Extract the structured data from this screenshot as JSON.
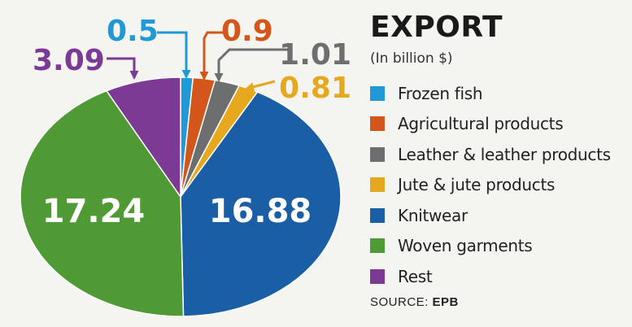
{
  "chart_data": {
    "type": "pie",
    "title": "EXPORT",
    "subtitle": "(In billion $)",
    "slices": [
      {
        "name": "Frozen fish",
        "value": 0.5,
        "color": "#1f9ad6",
        "label": "0.5",
        "label_style": "callout"
      },
      {
        "name": "Agricultural products",
        "value": 0.9,
        "color": "#d3571a",
        "label": "0.9",
        "label_style": "callout"
      },
      {
        "name": "Leather & leather products",
        "value": 1.01,
        "color": "#6d6e70",
        "label": "1.01",
        "label_style": "callout"
      },
      {
        "name": "Jute & jute products",
        "value": 0.81,
        "color": "#e5a81f",
        "label": "0.81",
        "label_style": "callout"
      },
      {
        "name": "Knitwear",
        "value": 16.88,
        "color": "#1a5ea6",
        "label": "16.88",
        "label_style": "inside"
      },
      {
        "name": "Woven garments",
        "value": 17.24,
        "color": "#4f9a34",
        "label": "17.24",
        "label_style": "inside"
      },
      {
        "name": "Rest",
        "value": 3.09,
        "color": "#7d3a95",
        "label": "3.09",
        "label_style": "callout"
      }
    ],
    "legend_position": "right"
  },
  "source": {
    "prefix": "SOURCE:",
    "name": "EPB"
  }
}
